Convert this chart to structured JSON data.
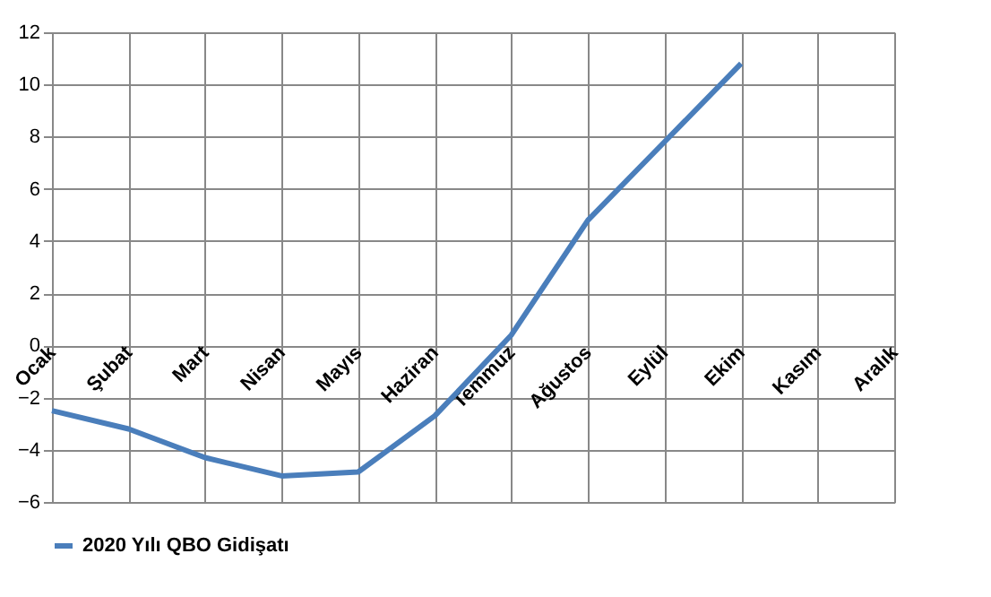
{
  "chart_data": {
    "type": "line",
    "categories": [
      "Ocak",
      "Şubat",
      "Mart",
      "Nisan",
      "Mayıs",
      "Haziran",
      "Temmuz",
      "Ağustos",
      "Eylül",
      "Ekim",
      "Kasım",
      "Aralık"
    ],
    "series": [
      {
        "name": "2020 Yılı QBO Gidişatı",
        "color": "#4a7ebb",
        "values": [
          -2.5,
          -3.2,
          -4.3,
          -5.0,
          -4.85,
          -2.7,
          0.4,
          4.8,
          7.8,
          10.8,
          null,
          null
        ]
      }
    ],
    "ylim": [
      -6,
      12
    ],
    "yticks": [
      -6,
      -4,
      -2,
      0,
      2,
      4,
      6,
      8,
      10,
      12
    ],
    "grid": true,
    "legend": "bottom",
    "marker": "none",
    "line_style": "solid"
  }
}
